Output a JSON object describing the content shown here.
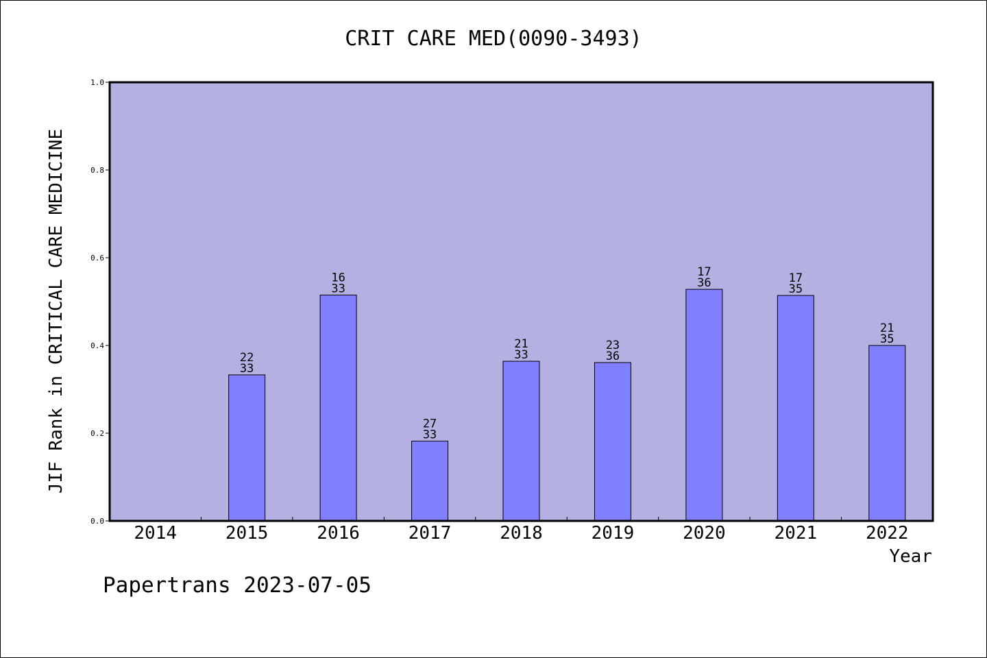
{
  "chart_data": {
    "type": "bar",
    "title": "CRIT CARE MED(0090-3493)",
    "xlabel": "Year",
    "ylabel": "JIF Rank in CRITICAL CARE MEDICINE",
    "ylim": [
      0,
      1.0
    ],
    "yticks": [
      "0.0",
      "0.2",
      "0.4",
      "0.6",
      "0.8",
      "1.0"
    ],
    "categories": [
      "2014",
      "2015",
      "2016",
      "2017",
      "2018",
      "2019",
      "2020",
      "2021",
      "2022"
    ],
    "values": [
      null,
      0.333,
      0.515,
      0.182,
      0.364,
      0.361,
      0.528,
      0.514,
      0.4
    ],
    "ranks": [
      null,
      "22",
      "16",
      "27",
      "21",
      "23",
      "17",
      "17",
      "21"
    ],
    "totals": [
      null,
      "33",
      "33",
      "33",
      "33",
      "36",
      "36",
      "35",
      "35"
    ],
    "colors": {
      "plot_bg": "#b5b0e2",
      "bar": "#8080ff",
      "bar_edge": "#000000"
    }
  },
  "footer": "Papertrans 2023-07-05"
}
